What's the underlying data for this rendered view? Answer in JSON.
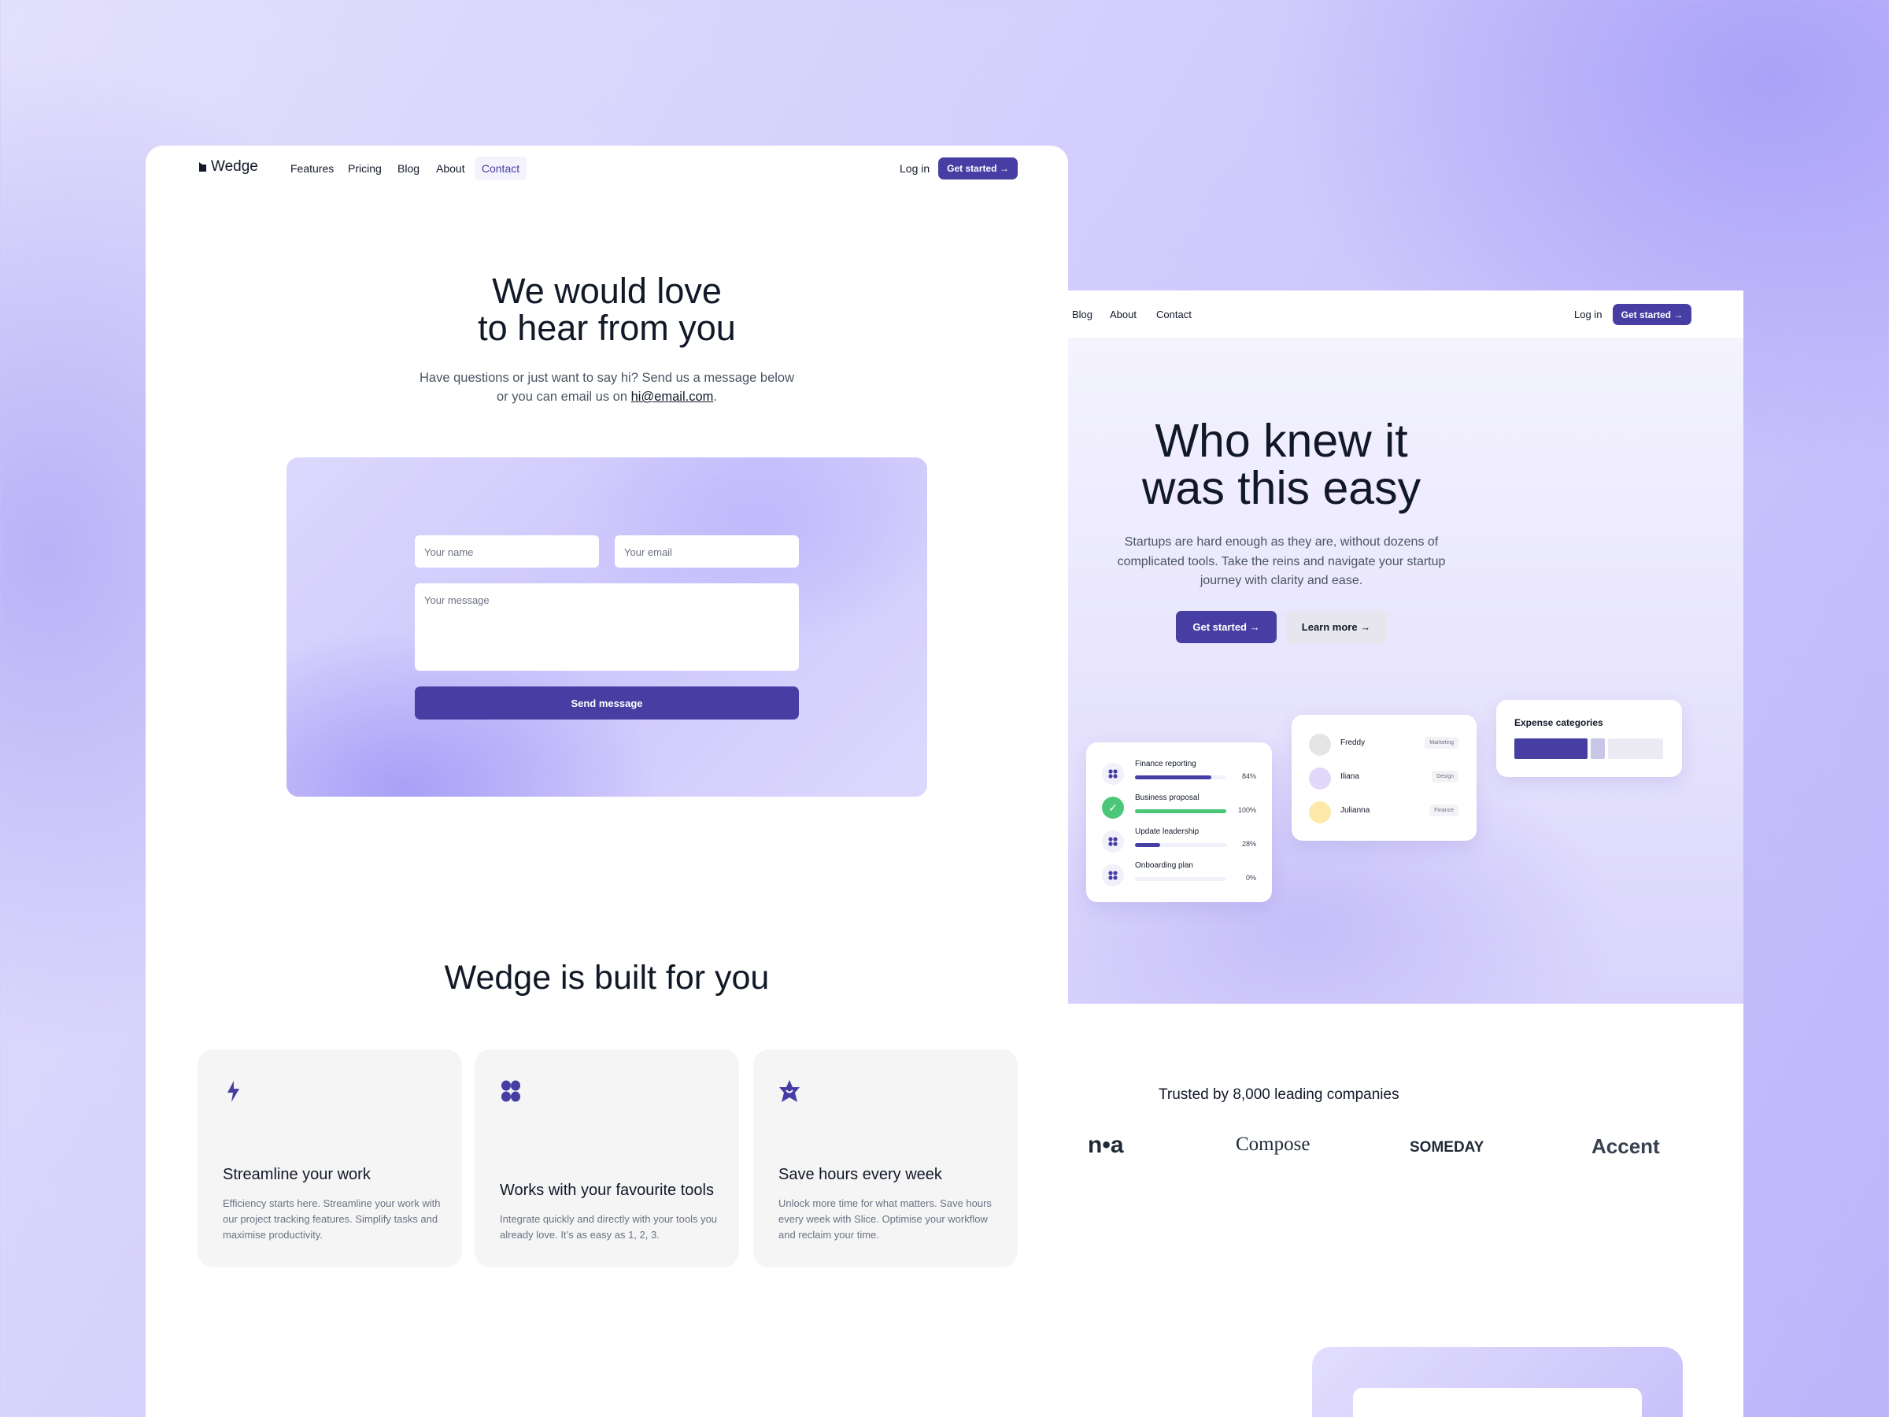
{
  "left": {
    "logo": "Wedge",
    "nav": [
      "Features",
      "Pricing",
      "Blog",
      "About",
      "Contact"
    ],
    "active_nav": "Contact",
    "login": "Log in",
    "cta": "Get started",
    "hero": {
      "line1": "We would love",
      "line2": "to hear from you",
      "sub1": "Have questions or just want to say hi? Send us a message below",
      "sub2_pre": "or you can email us on ",
      "email": "hi@email.com",
      "sub2_post": "."
    },
    "form": {
      "name_placeholder": "Your name",
      "email_placeholder": "Your email",
      "message_placeholder": "Your message",
      "submit": "Send message"
    },
    "features_title": "Wedge is built for you",
    "features": [
      {
        "icon": "lightning-icon",
        "title": "Streamline your work",
        "desc": "Efficiency starts here. Streamline your work with our project tracking features. Simplify tasks and maximise productivity."
      },
      {
        "icon": "grid-icon",
        "title": "Works with your favourite tools",
        "desc": "Integrate quickly and directly with your tools you already love. It’s as easy as 1, 2, 3."
      },
      {
        "icon": "star-icon",
        "title": "Save hours every week",
        "desc": "Unlock more time for what matters. Save hours every week with Slice. Optimise your workflow and reclaim your time."
      }
    ]
  },
  "right": {
    "nav": [
      "Blog",
      "About",
      "Contact"
    ],
    "login": "Log in",
    "cta": "Get started",
    "hero": {
      "line1": "Who knew it",
      "line2": "was this easy",
      "sub": "Startups are hard enough as they are, without dozens of complicated tools. Take the reins and navigate your startup journey with clarity and ease.",
      "primary": "Get started",
      "secondary": "Learn more"
    },
    "tasks": [
      {
        "name": "Finance reporting",
        "progress": 84,
        "label": "84%",
        "done": false
      },
      {
        "name": "Business proposal",
        "progress": 100,
        "label": "100%",
        "done": true
      },
      {
        "name": "Update leadership",
        "progress": 28,
        "label": "28%",
        "done": false
      },
      {
        "name": "Onboarding plan",
        "progress": 0,
        "label": "0%",
        "done": false
      }
    ],
    "people": [
      {
        "name": "Freddy",
        "tag": "Marketing"
      },
      {
        "name": "Iliana",
        "tag": "Design"
      },
      {
        "name": "Julianna",
        "tag": "Finance"
      }
    ],
    "expense_title": "Expense categories",
    "trusted": "Trusted by 8,000 leading companies",
    "logos": [
      "n•a",
      "Compose",
      "SOMEDAY",
      "Accent"
    ]
  },
  "colors": {
    "accent": "#463ea3",
    "success": "#4cc77a",
    "background": "#d4cffc"
  }
}
